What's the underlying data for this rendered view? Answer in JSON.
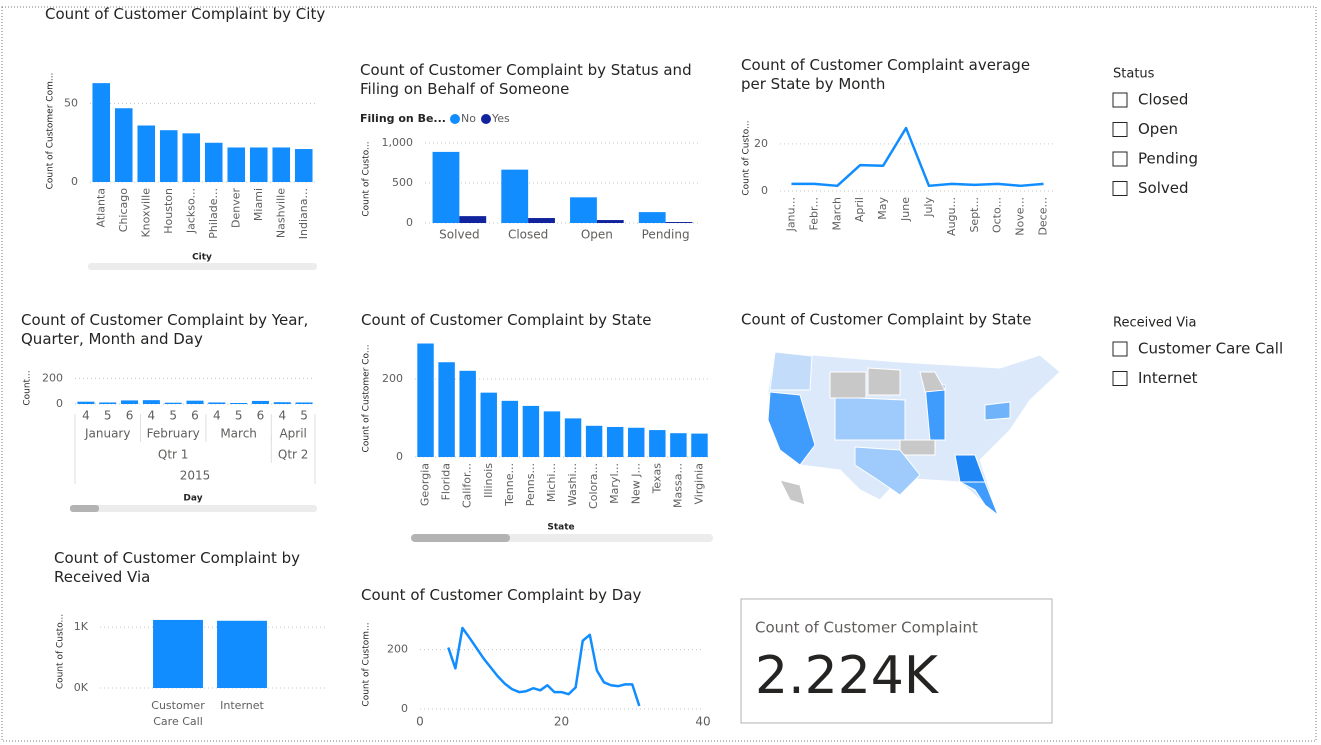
{
  "chart_data": [
    {
      "type": "bar",
      "title": "Count of Customer Complaint by City",
      "x_label": "City",
      "y_label": "Count of Customer Com...",
      "categories": [
        "Atlanta",
        "Chicago",
        "Knoxville",
        "Houston",
        "Jackso...",
        "Philade...",
        "Denver",
        "Miami",
        "Nashville",
        "Indiana..."
      ],
      "values": [
        63,
        47,
        36,
        33,
        31,
        25,
        22,
        22,
        22,
        21
      ],
      "color": "#118dff",
      "ylim": [
        0,
        65
      ],
      "yticks": [
        0,
        50
      ],
      "grid": true
    },
    {
      "type": "bar",
      "title": "Count of Customer Complaint by Status and Filing on Behalf of Someone",
      "y_label": "Count of Custo...",
      "legend_title": "Filing on Be...",
      "categories": [
        "Solved",
        "Closed",
        "Open",
        "Pending"
      ],
      "series": [
        {
          "name": "No",
          "color": "#118dff",
          "values": [
            889,
            667,
            321,
            136
          ]
        },
        {
          "name": "Yes",
          "color": "#12239e",
          "values": [
            86,
            62,
            37,
            12
          ]
        }
      ],
      "ylim": [
        0,
        1100
      ],
      "yticks": [
        0,
        500,
        {
          "value": 1000,
          "label": "1,000"
        }
      ],
      "grid": true,
      "legend": "top-left"
    },
    {
      "type": "line",
      "title": "Count of Customer Complaint average per State by Month",
      "y_label": "Count of Custo...",
      "categories": [
        "Janu...",
        "Febr...",
        "March",
        "April",
        "May",
        "June",
        "July",
        "Augu...",
        "Sept...",
        "Octo...",
        "Nove...",
        "Dece..."
      ],
      "values": [
        3,
        3,
        2.2,
        11,
        10.7,
        26.7,
        2.2,
        3,
        2.6,
        3,
        2.2,
        3
      ],
      "color": "#118dff",
      "ylim": [
        0,
        28
      ],
      "yticks": [
        0,
        20
      ],
      "grid": true
    },
    {
      "type": "bar",
      "title": "Count of Customer Complaint by Year, Quarter, Month and Day",
      "x_label": "Day",
      "y_label": "Count...",
      "categories": [
        "4",
        "5",
        "6",
        "4",
        "5",
        "6",
        "4",
        "5",
        "6",
        "4",
        "5"
      ],
      "x_groups": [
        [
          "January",
          "February",
          "March",
          "April"
        ],
        [
          "Qtr 1",
          "Qtr 2"
        ],
        [
          "2015"
        ]
      ],
      "values": [
        18,
        12,
        28,
        30,
        10,
        26,
        12,
        8,
        24,
        14,
        12
      ],
      "color": "#118dff",
      "ylim": [
        0,
        250
      ],
      "yticks": [
        0,
        200
      ],
      "grid": true
    },
    {
      "type": "bar",
      "title": "Count of Customer Complaint by State",
      "x_label": "State",
      "y_label": "Count of Customer Co...",
      "categories": [
        "Georgia",
        "Florida",
        "Califor...",
        "Illinois",
        "Tenne...",
        "Penns...",
        "Michi...",
        "Washi...",
        "Colora...",
        "Maryl...",
        "New J...",
        "Texas",
        "Massa...",
        "Virginia"
      ],
      "values": [
        291,
        243,
        221,
        165,
        144,
        131,
        117,
        99,
        80,
        77,
        75,
        69,
        61,
        60
      ],
      "color": "#118dff",
      "ylim": [
        0,
        300
      ],
      "yticks": [
        0,
        200
      ],
      "grid": true
    },
    {
      "type": "bar",
      "title": "Count of Customer Complaint by Received Via",
      "y_label": "Count of Custo...",
      "categories": [
        "Customer Care Call",
        "Internet"
      ],
      "values": [
        1119,
        1105
      ],
      "color": "#118dff",
      "ylim": [
        0,
        1200
      ],
      "yticks": [
        {
          "value": 0,
          "label": "0K"
        },
        {
          "value": 1000,
          "label": "1K"
        }
      ],
      "grid": true
    },
    {
      "type": "line",
      "title": "Count of Customer Complaint by Day",
      "y_label": "Count of Custom...",
      "x": [
        4,
        5,
        6,
        7,
        8,
        9,
        10,
        11,
        12,
        13,
        14,
        15,
        16,
        17,
        18,
        19,
        20,
        21,
        22,
        23,
        24,
        25,
        26,
        27,
        28,
        29,
        30,
        31
      ],
      "values": [
        207,
        137,
        273,
        240,
        205,
        170,
        140,
        110,
        85,
        67,
        57,
        60,
        70,
        63,
        80,
        57,
        57,
        50,
        73,
        230,
        250,
        130,
        90,
        80,
        77,
        83,
        83,
        10
      ],
      "color": "#118dff",
      "xlim": [
        0,
        40
      ],
      "xticks": [
        0,
        20,
        40
      ],
      "ylim": [
        0,
        300
      ],
      "yticks": [
        0,
        200
      ],
      "grid": true
    }
  ],
  "map": {
    "title": "Count of Customer Complaint by State"
  },
  "card": {
    "label": "Count of Customer Complaint",
    "value": "2.224K"
  },
  "slicers": [
    {
      "title": "Status",
      "options": [
        "Closed",
        "Open",
        "Pending",
        "Solved"
      ]
    },
    {
      "title": "Received Via",
      "options": [
        "Customer Care Call",
        "Internet"
      ]
    }
  ]
}
